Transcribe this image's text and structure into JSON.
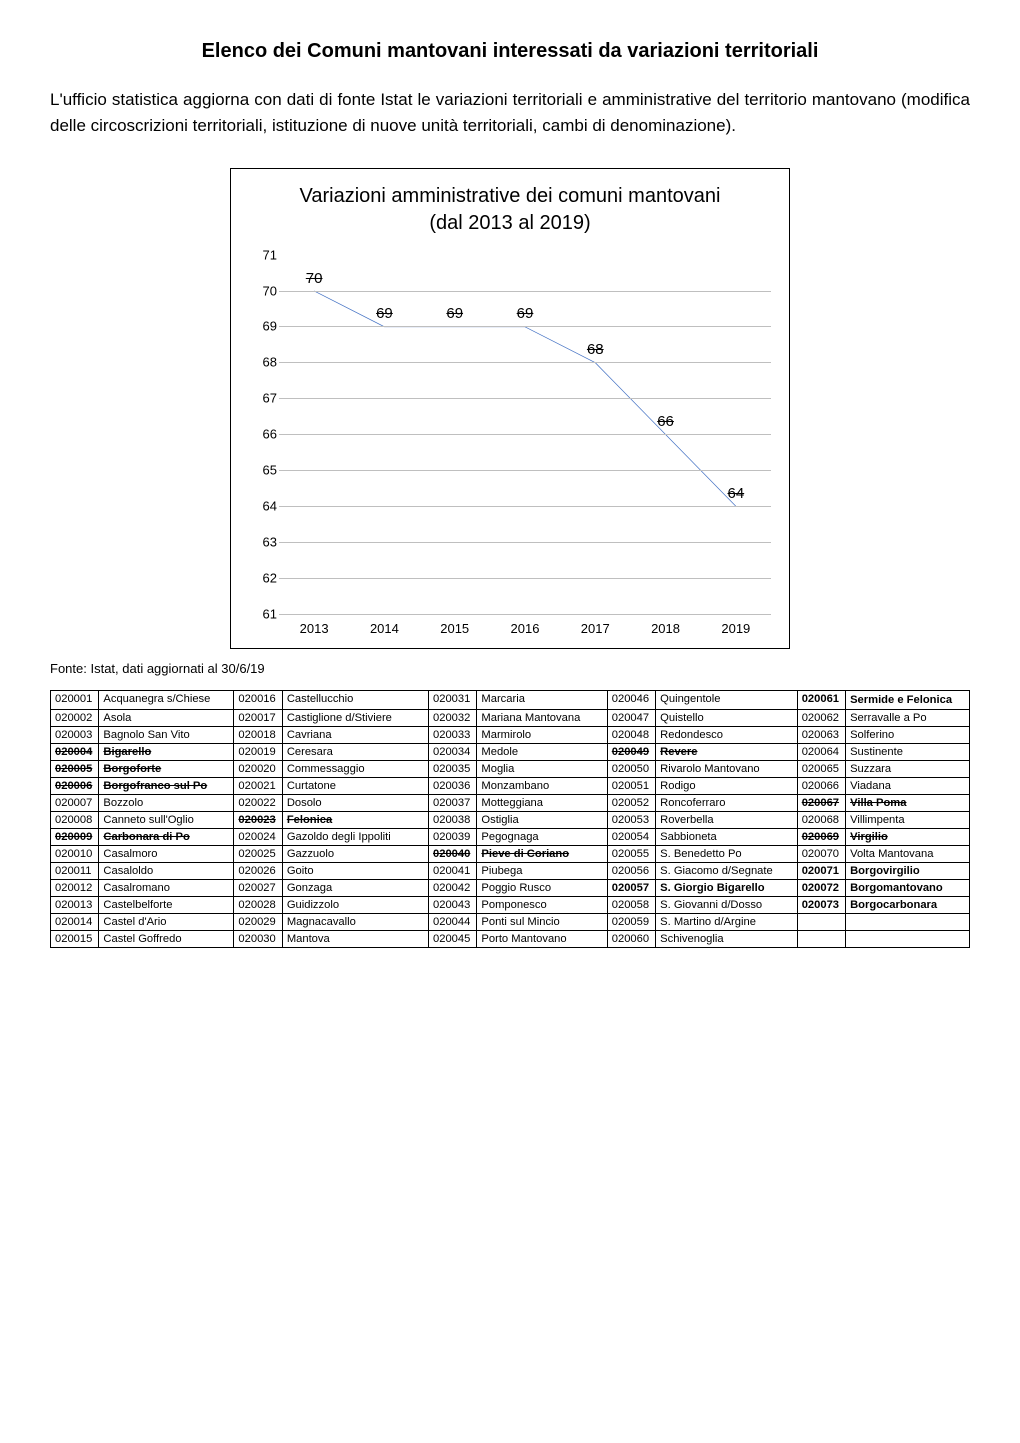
{
  "title": "Elenco dei Comuni mantovani interessati da variazioni territoriali",
  "intro": "L'ufficio statistica aggiorna con dati di fonte Istat le variazioni territoriali e amministrative del territorio mantovano (modifica delle circoscrizioni territoriali, istituzione di nuove unità territoriali, cambi di denominazione).",
  "chart": {
    "title_line1": "Variazioni amministrative dei comuni mantovani",
    "title_line2": "(dal 2013 al 2019)",
    "type": "line",
    "years": [
      "2013",
      "2014",
      "2015",
      "2016",
      "2017",
      "2018",
      "2019"
    ],
    "values": [
      70,
      69,
      69,
      69,
      68,
      66,
      64
    ],
    "ylim": [
      61,
      71
    ],
    "ytick_step": 1,
    "line_color": "#4472c4",
    "line_width": 2,
    "grid_color": "#bfbfbf",
    "background_color": "#ffffff",
    "datalabel_fontsize": 15
  },
  "source": "Fonte: Istat, dati aggiornati al 30/6/19",
  "table": {
    "rows": [
      [
        {
          "code": "020001",
          "name": "Acquanegra s/Chiese"
        },
        {
          "code": "020016",
          "name": "Castellucchio"
        },
        {
          "code": "020031",
          "name": "Marcaria"
        },
        {
          "code": "020046",
          "name": "Quingentole"
        },
        {
          "code": "020061",
          "name": "Sermide e Felonica",
          "bold": true,
          "tworow": true
        }
      ],
      [
        {
          "code": "020002",
          "name": "Asola"
        },
        {
          "code": "020017",
          "name": "Castiglione d/Stiviere"
        },
        {
          "code": "020032",
          "name": "Mariana Mantovana"
        },
        {
          "code": "020047",
          "name": "Quistello"
        },
        {
          "code": "020062",
          "name": "Serravalle a Po"
        }
      ],
      [
        {
          "code": "020003",
          "name": "Bagnolo San Vito"
        },
        {
          "code": "020018",
          "name": "Cavriana"
        },
        {
          "code": "020033",
          "name": "Marmirolo"
        },
        {
          "code": "020048",
          "name": "Redondesco"
        },
        {
          "code": "020063",
          "name": "Solferino"
        }
      ],
      [
        {
          "code": "020004",
          "name": "Bigarello",
          "strike": true,
          "bold": true
        },
        {
          "code": "020019",
          "name": "Ceresara"
        },
        {
          "code": "020034",
          "name": "Medole"
        },
        {
          "code": "020049",
          "name": "Revere",
          "strike": true,
          "bold": true
        },
        {
          "code": "020064",
          "name": "Sustinente"
        }
      ],
      [
        {
          "code": "020005",
          "name": "Borgoforte",
          "strike": true,
          "bold": true
        },
        {
          "code": "020020",
          "name": "Commessaggio"
        },
        {
          "code": "020035",
          "name": "Moglia"
        },
        {
          "code": "020050",
          "name": "Rivarolo Mantovano"
        },
        {
          "code": "020065",
          "name": "Suzzara"
        }
      ],
      [
        {
          "code": "020006",
          "name": "Borgofranco sul Po",
          "strike": true,
          "bold": true
        },
        {
          "code": "020021",
          "name": "Curtatone"
        },
        {
          "code": "020036",
          "name": "Monzambano"
        },
        {
          "code": "020051",
          "name": "Rodigo"
        },
        {
          "code": "020066",
          "name": "Viadana"
        }
      ],
      [
        {
          "code": "020007",
          "name": "Bozzolo"
        },
        {
          "code": "020022",
          "name": "Dosolo"
        },
        {
          "code": "020037",
          "name": "Motteggiana"
        },
        {
          "code": "020052",
          "name": "Roncoferraro"
        },
        {
          "code": "020067",
          "name": "Villa Poma",
          "strike": true,
          "bold": true
        }
      ],
      [
        {
          "code": "020008",
          "name": "Canneto sull'Oglio"
        },
        {
          "code": "020023",
          "name": "Felonica",
          "strike": true,
          "bold": true
        },
        {
          "code": "020038",
          "name": "Ostiglia"
        },
        {
          "code": "020053",
          "name": "Roverbella"
        },
        {
          "code": "020068",
          "name": "Villimpenta"
        }
      ],
      [
        {
          "code": "020009",
          "name": "Carbonara di Po",
          "strike": true,
          "bold": true
        },
        {
          "code": "020024",
          "name": "Gazoldo degli Ippoliti"
        },
        {
          "code": "020039",
          "name": "Pegognaga"
        },
        {
          "code": "020054",
          "name": "Sabbioneta"
        },
        {
          "code": "020069",
          "name": "Virgilio",
          "strike": true,
          "bold": true
        }
      ],
      [
        {
          "code": "020010",
          "name": "Casalmoro"
        },
        {
          "code": "020025",
          "name": "Gazzuolo"
        },
        {
          "code": "020040",
          "name": "Pieve di Coriano",
          "strike": true,
          "bold": true
        },
        {
          "code": "020055",
          "name": "S. Benedetto Po"
        },
        {
          "code": "020070",
          "name": "Volta Mantovana"
        }
      ],
      [
        {
          "code": "020011",
          "name": "Casaloldo"
        },
        {
          "code": "020026",
          "name": "Goito"
        },
        {
          "code": "020041",
          "name": "Piubega"
        },
        {
          "code": "020056",
          "name": "S. Giacomo d/Segnate"
        },
        {
          "code": "020071",
          "name": "Borgovirgilio",
          "bold": true
        }
      ],
      [
        {
          "code": "020012",
          "name": "Casalromano"
        },
        {
          "code": "020027",
          "name": "Gonzaga"
        },
        {
          "code": "020042",
          "name": "Poggio Rusco"
        },
        {
          "code": "020057",
          "name": "S. Giorgio Bigarello",
          "bold": true
        },
        {
          "code": "020072",
          "name": "Borgomantovano",
          "bold": true
        }
      ],
      [
        {
          "code": "020013",
          "name": "Castelbelforte"
        },
        {
          "code": "020028",
          "name": "Guidizzolo"
        },
        {
          "code": "020043",
          "name": "Pomponesco"
        },
        {
          "code": "020058",
          "name": "S. Giovanni d/Dosso"
        },
        {
          "code": "020073",
          "name": "Borgocarbonara",
          "bold": true
        }
      ],
      [
        {
          "code": "020014",
          "name": "Castel d'Ario"
        },
        {
          "code": "020029",
          "name": "Magnacavallo"
        },
        {
          "code": "020044",
          "name": "Ponti sul Mincio"
        },
        {
          "code": "020059",
          "name": "S. Martino d/Argine"
        },
        {
          "code": "",
          "name": ""
        }
      ],
      [
        {
          "code": "020015",
          "name": "Castel Goffredo"
        },
        {
          "code": "020030",
          "name": "Mantova"
        },
        {
          "code": "020045",
          "name": "Porto Mantovano"
        },
        {
          "code": "020060",
          "name": "Schivenoglia"
        },
        {
          "code": "",
          "name": ""
        }
      ]
    ]
  }
}
